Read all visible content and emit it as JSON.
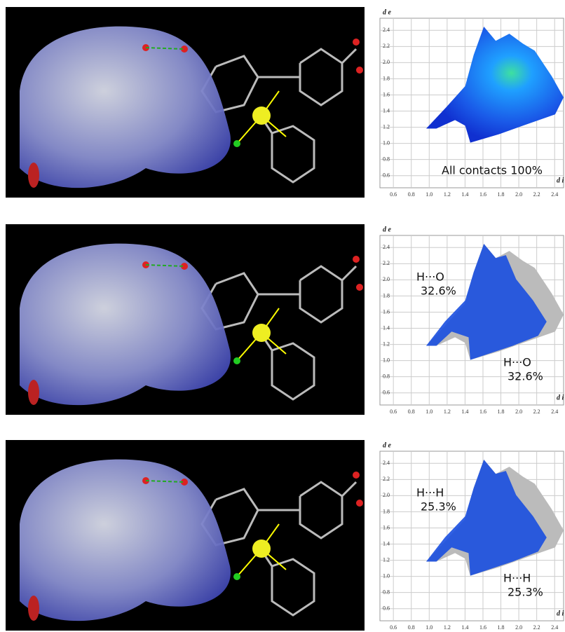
{
  "chart_data": [
    {
      "type": "fingerprint",
      "x_label": "d i",
      "y_label": "d e",
      "xlim": [
        0.45,
        2.5
      ],
      "ylim": [
        0.45,
        2.55
      ],
      "xticks": [
        0.6,
        0.8,
        {
          "value": 1,
          "label": "1.0"
        },
        1.2,
        1.4,
        1.6,
        1.8,
        {
          "value": 2,
          "label": "2.0"
        },
        2.2,
        2.4
      ],
      "yticks": [
        0.6,
        0.8,
        {
          "value": 1,
          "label": "1.0"
        },
        1.2,
        1.4,
        1.6,
        1.8,
        {
          "value": 2,
          "label": "2.0"
        },
        2.2,
        2.4
      ],
      "grid": true,
      "highlight": false,
      "annotations": [
        "All contacts 100%"
      ]
    },
    {
      "type": "fingerprint",
      "x_label": "d i",
      "y_label": "d e",
      "xlim": [
        0.45,
        2.5
      ],
      "ylim": [
        0.45,
        2.55
      ],
      "xticks": [
        0.6,
        0.8,
        {
          "value": 1,
          "label": "1.0"
        },
        1.2,
        1.4,
        1.6,
        1.8,
        {
          "value": 2,
          "label": "2.0"
        },
        2.2,
        2.4
      ],
      "yticks": [
        0.6,
        0.8,
        {
          "value": 1,
          "label": "1.0"
        },
        1.2,
        1.4,
        1.6,
        1.8,
        {
          "value": 2,
          "label": "2.0"
        },
        2.2,
        2.4
      ],
      "grid": true,
      "highlight": true,
      "annotations": [
        "H···O",
        "32.6%",
        "H···O",
        "32.6%"
      ]
    },
    {
      "type": "fingerprint",
      "x_label": "d i",
      "y_label": "d e",
      "xlim": [
        0.45,
        2.5
      ],
      "ylim": [
        0.45,
        2.55
      ],
      "xticks": [
        0.6,
        0.8,
        {
          "value": 1,
          "label": "1.0"
        },
        1.2,
        1.4,
        1.6,
        1.8,
        {
          "value": 2,
          "label": "2.0"
        },
        2.2,
        2.4
      ],
      "yticks": [
        0.6,
        0.8,
        {
          "value": 1,
          "label": "1.0"
        },
        1.2,
        1.4,
        1.6,
        1.8,
        {
          "value": 2,
          "label": "2.0"
        },
        2.2,
        2.4
      ],
      "grid": true,
      "highlight": true,
      "annotations": [
        "H···H",
        "25.3%",
        "H···H",
        "25.3%"
      ]
    }
  ]
}
